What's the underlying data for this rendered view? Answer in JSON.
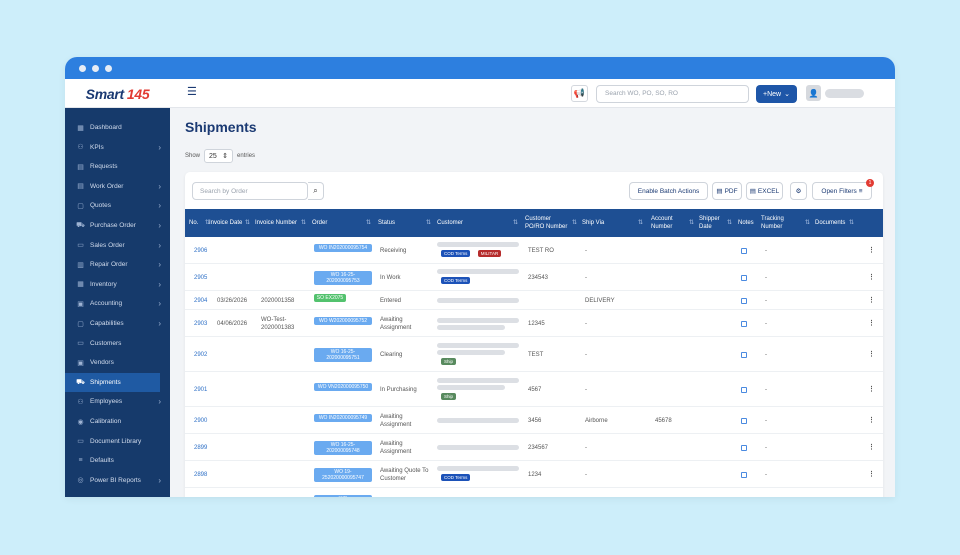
{
  "app": {
    "logo_text": "Smart",
    "logo_accent": "145"
  },
  "topbar": {
    "search_placeholder": "Search WO, PO, SO, RO",
    "new_label": "+New"
  },
  "sidebar": {
    "items": [
      {
        "label": "Dashboard",
        "icon": "chart-icon",
        "chevron": false
      },
      {
        "label": "KPIs",
        "icon": "kpi-icon",
        "chevron": true
      },
      {
        "label": "Requests",
        "icon": "document-icon",
        "chevron": false
      },
      {
        "label": "Work Order",
        "icon": "document-icon",
        "chevron": true
      },
      {
        "label": "Quotes",
        "icon": "clipboard-icon",
        "chevron": true
      },
      {
        "label": "Purchase Order",
        "icon": "cart-icon",
        "chevron": true
      },
      {
        "label": "Sales Order",
        "icon": "card-icon",
        "chevron": true
      },
      {
        "label": "Repair Order",
        "icon": "bar-chart-icon",
        "chevron": true
      },
      {
        "label": "Inventory",
        "icon": "inventory-icon",
        "chevron": true
      },
      {
        "label": "Accounting",
        "icon": "accounting-icon",
        "chevron": true
      },
      {
        "label": "Capabilities",
        "icon": "calendar-icon",
        "chevron": true
      },
      {
        "label": "Customers",
        "icon": "customers-icon",
        "chevron": false
      },
      {
        "label": "Vendors",
        "icon": "vendors-icon",
        "chevron": false
      },
      {
        "label": "Shipments",
        "icon": "truck-icon",
        "chevron": false,
        "active": true
      },
      {
        "label": "Employees",
        "icon": "users-icon",
        "chevron": true
      },
      {
        "label": "Calibration",
        "icon": "calibration-icon",
        "chevron": false
      },
      {
        "label": "Document Library",
        "icon": "folder-icon",
        "chevron": false
      },
      {
        "label": "Defaults",
        "icon": "list-icon",
        "chevron": false
      },
      {
        "label": "Power BI Reports",
        "icon": "report-icon",
        "chevron": true
      }
    ]
  },
  "page": {
    "title": "Shipments",
    "show_label": "Show",
    "entries_value": "25",
    "entries_label": "entries"
  },
  "toolbar": {
    "search_placeholder": "Search by Order",
    "batch_label": "Enable Batch Actions",
    "pdf_label": "PDF",
    "excel_label": "EXCEL",
    "filters_label": "Open Filters",
    "filters_count": "1"
  },
  "table": {
    "headers": [
      "No.",
      "Invoice Date",
      "Invoice Number",
      "Order",
      "Status",
      "Customer",
      "Customer PO/RO Number",
      "Ship Via",
      "Account Number",
      "Shipper Date",
      "Notes",
      "Tracking Number",
      "Documents"
    ],
    "rows": [
      {
        "no": "2906",
        "inv_date": "",
        "inv_num": "",
        "order": "WO IN202000095754",
        "order_color": "blue",
        "status": "Receiving",
        "tags": [
          {
            "t": "COD Terms",
            "c": "blue"
          },
          {
            "t": "MILITAR",
            "c": "red"
          }
        ],
        "bars": 1,
        "po": "TEST RO",
        "ship_via": "-",
        "account": "",
        "tracking": "-"
      },
      {
        "no": "2905",
        "inv_date": "",
        "inv_num": "",
        "order": "WO 16-25-202000095753",
        "order_color": "blue",
        "status": "In Work",
        "tags": [
          {
            "t": "COD Terms",
            "c": "blue"
          }
        ],
        "bars": 1,
        "po": "234543",
        "ship_via": "-",
        "account": "",
        "tracking": "-"
      },
      {
        "no": "2904",
        "inv_date": "03/26/2026",
        "inv_num": "2020001358",
        "order": "SO EX2075",
        "order_color": "green",
        "status": "Entered",
        "tags": [],
        "bars": 1,
        "po": "",
        "ship_via": "DELIVERY",
        "account": "",
        "tracking": "-"
      },
      {
        "no": "2903",
        "inv_date": "04/06/2026",
        "inv_num": "WO-Test-2020001383",
        "order": "WO W202000095752",
        "order_color": "blue",
        "status": "Awaiting Assignment",
        "tags": [],
        "bars": 2,
        "po": "12345",
        "ship_via": "-",
        "account": "",
        "tracking": "-"
      },
      {
        "no": "2902",
        "inv_date": "",
        "inv_num": "",
        "order": "WO 16-25-202000095751",
        "order_color": "blue",
        "status": "Clearing",
        "tags": [
          {
            "t": "Ship",
            "c": "green"
          }
        ],
        "bars": 2,
        "po": "TEST",
        "ship_via": "-",
        "account": "",
        "tracking": "-"
      },
      {
        "no": "2901",
        "inv_date": "",
        "inv_num": "",
        "order": "WO VN202000095750",
        "order_color": "blue",
        "status": "In Purchasing",
        "tags": [
          {
            "t": "Ship",
            "c": "green"
          }
        ],
        "bars": 2,
        "po": "4567",
        "ship_via": "-",
        "account": "",
        "tracking": "-"
      },
      {
        "no": "2900",
        "inv_date": "",
        "inv_num": "",
        "order": "WO IN202000095749",
        "order_color": "blue",
        "status": "Awaiting Assignment",
        "tags": [],
        "bars": 1,
        "po": "3456",
        "ship_via": "Airborne",
        "account": "45678",
        "tracking": "-"
      },
      {
        "no": "2899",
        "inv_date": "",
        "inv_num": "",
        "order": "WO 16-25-202000095748",
        "order_color": "blue",
        "status": "Awaiting Assignment",
        "tags": [],
        "bars": 1,
        "po": "234567",
        "ship_via": "-",
        "account": "",
        "tracking": "-"
      },
      {
        "no": "2898",
        "inv_date": "",
        "inv_num": "",
        "order": "WO 19-252020000095747",
        "order_color": "blue",
        "status": "Awaiting Quote To Customer",
        "tags": [
          {
            "t": "COD Terms",
            "c": "blue"
          }
        ],
        "bars": 1,
        "po": "1234",
        "ship_via": "-",
        "account": "",
        "tracking": "-"
      },
      {
        "no": "",
        "inv_date": "",
        "inv_num": "",
        "order": "WO",
        "order_color": "blue",
        "status": "Awaiting",
        "tags": [],
        "bars": 0,
        "po": "",
        "ship_via": "",
        "account": "",
        "tracking": ""
      }
    ]
  }
}
